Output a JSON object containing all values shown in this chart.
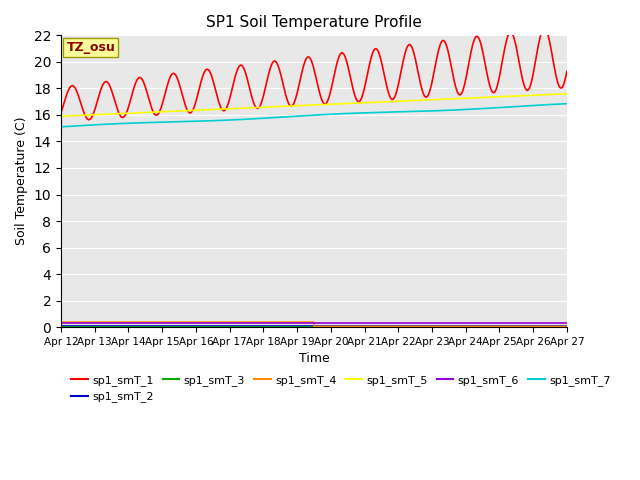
{
  "title": "SP1 Soil Temperature Profile",
  "xlabel": "Time",
  "ylabel": "Soil Temperature (C)",
  "annotation_text": "TZ_osu",
  "annotation_color": "#8B0000",
  "annotation_bg": "#FFFF99",
  "annotation_border": "#999900",
  "ylim": [
    0,
    22
  ],
  "yticks": [
    0,
    2,
    4,
    6,
    8,
    10,
    12,
    14,
    16,
    18,
    20,
    22
  ],
  "xtick_labels": [
    "Apr 12",
    "Apr 13",
    "Apr 14",
    "Apr 15",
    "Apr 16",
    "Apr 17",
    "Apr 18",
    "Apr 19",
    "Apr 20",
    "Apr 21",
    "Apr 22",
    "Apr 23",
    "Apr 24",
    "Apr 25",
    "Apr 26",
    "Apr 27"
  ],
  "series_colors": {
    "sp1_smT_1": "#FF0000",
    "sp1_smT_2": "#0000CD",
    "sp1_smT_3": "#00AA00",
    "sp1_smT_4": "#FF8C00",
    "sp1_smT_5": "#FFFF00",
    "sp1_smT_6": "#9400D3",
    "sp1_smT_7": "#00CED1"
  },
  "plot_bg_color": "#E8E8E8",
  "grid_color": "#FFFFFF",
  "legend_order": [
    "sp1_smT_1",
    "sp1_smT_2",
    "sp1_smT_3",
    "sp1_smT_4",
    "sp1_smT_5",
    "sp1_smT_6",
    "sp1_smT_7"
  ]
}
